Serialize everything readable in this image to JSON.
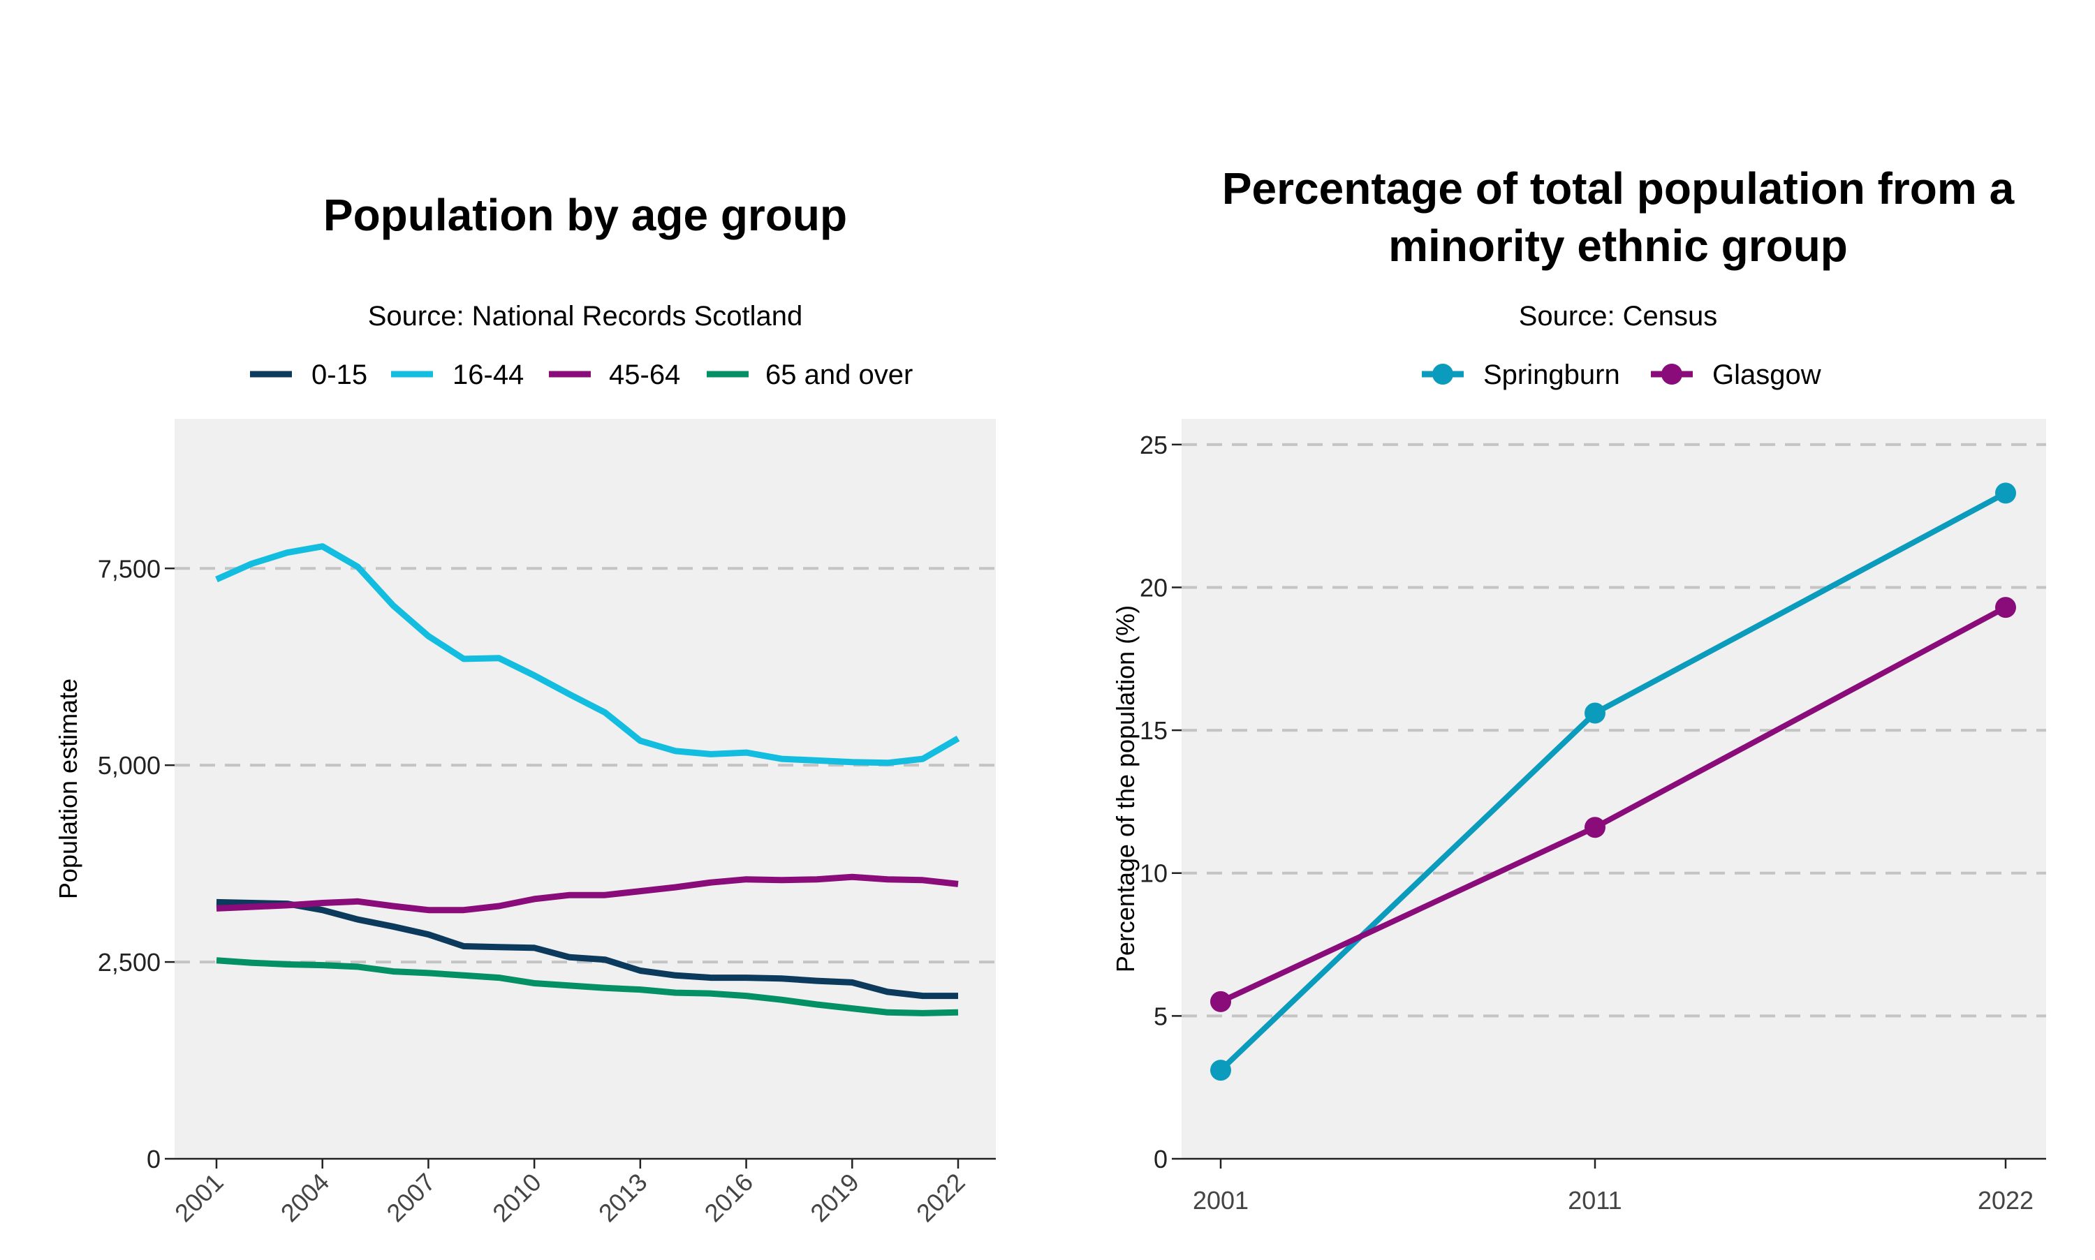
{
  "chart_data": [
    {
      "type": "line",
      "title": "Population by age group",
      "subtitle": "Source: National Records Scotland",
      "xlabel": "",
      "ylabel": "Population estimate",
      "x": [
        2001,
        2002,
        2003,
        2004,
        2005,
        2006,
        2007,
        2008,
        2009,
        2010,
        2011,
        2012,
        2013,
        2014,
        2015,
        2016,
        2017,
        2018,
        2019,
        2020,
        2021,
        2022
      ],
      "xticks": [
        "2001",
        "2004",
        "2007",
        "2010",
        "2013",
        "2016",
        "2019",
        "2022"
      ],
      "yticks": [
        "0",
        "2,500",
        "5,000",
        "7,500"
      ],
      "ylim": [
        0,
        9400
      ],
      "grid": "horizontal dashed",
      "legend_position": "top",
      "series": [
        {
          "name": "0-15",
          "color": "#0b3a5c",
          "values": [
            3260,
            3250,
            3240,
            3160,
            3040,
            2950,
            2850,
            2700,
            2690,
            2680,
            2560,
            2530,
            2390,
            2330,
            2300,
            2300,
            2290,
            2260,
            2240,
            2120,
            2070,
            2070
          ]
        },
        {
          "name": "16-44",
          "color": "#12bde0",
          "values": [
            7360,
            7560,
            7700,
            7780,
            7520,
            7030,
            6640,
            6350,
            6360,
            6140,
            5900,
            5670,
            5310,
            5180,
            5140,
            5160,
            5080,
            5060,
            5040,
            5030,
            5080,
            5340
          ]
        },
        {
          "name": "45-64",
          "color": "#8a0c7a",
          "values": [
            3180,
            3200,
            3220,
            3250,
            3270,
            3210,
            3160,
            3160,
            3210,
            3300,
            3350,
            3350,
            3400,
            3450,
            3510,
            3550,
            3540,
            3550,
            3580,
            3550,
            3540,
            3490
          ]
        },
        {
          "name": "65 and over",
          "color": "#039064",
          "values": [
            2520,
            2490,
            2470,
            2460,
            2440,
            2380,
            2360,
            2330,
            2300,
            2230,
            2200,
            2170,
            2150,
            2110,
            2100,
            2070,
            2020,
            1960,
            1910,
            1860,
            1850,
            1860
          ]
        }
      ]
    },
    {
      "type": "line",
      "title": "Percentage of total population from a minority ethnic group",
      "title_lines": [
        "Percentage of total population from a",
        "minority ethnic group"
      ],
      "subtitle": "Source: Census",
      "xlabel": "",
      "ylabel": "Percentage of the population (%)",
      "x": [
        2001,
        2011,
        2022
      ],
      "xticks": [
        "2001",
        "2011",
        "2022"
      ],
      "yticks": [
        "0",
        "5",
        "10",
        "15",
        "20",
        "25"
      ],
      "ylim": [
        0,
        25.9
      ],
      "grid": "horizontal dashed",
      "legend_position": "top",
      "markers": true,
      "series": [
        {
          "name": "Springburn",
          "color": "#0b9bbd",
          "values": [
            3.1,
            15.6,
            23.3
          ]
        },
        {
          "name": "Glasgow",
          "color": "#8a0c7a",
          "values": [
            5.5,
            11.6,
            19.3
          ]
        }
      ]
    }
  ]
}
